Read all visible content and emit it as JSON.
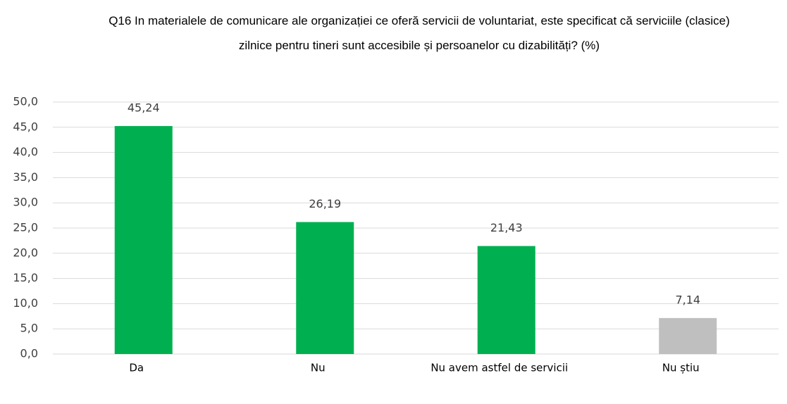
{
  "chart_data": {
    "type": "bar",
    "title": "Q16 In materialele de comunicare ale organizației ce oferă servicii de voluntariat, este specificat că serviciile (clasice) zilnice pentru tineri sunt accesibile și persoanelor cu dizabilități? (%)",
    "categories": [
      "Da",
      "Nu",
      "Nu avem astfel de servicii",
      "Nu știu"
    ],
    "values": [
      45.24,
      26.19,
      21.43,
      7.14
    ],
    "value_labels": [
      "45,24",
      "26,19",
      "21,43",
      "7,14"
    ],
    "colors": [
      "#00b050",
      "#00b050",
      "#00b050",
      "#bfbfbf"
    ],
    "ylim": [
      0,
      50
    ],
    "yticks": [
      {
        "value": 0,
        "label": "0,0"
      },
      {
        "value": 5,
        "label": "5,0"
      },
      {
        "value": 10,
        "label": "10,0"
      },
      {
        "value": 15,
        "label": "15,0"
      },
      {
        "value": 20,
        "label": "20,0"
      },
      {
        "value": 25,
        "label": "25,0"
      },
      {
        "value": 30,
        "label": "30,0"
      },
      {
        "value": 35,
        "label": "35,0"
      },
      {
        "value": 40,
        "label": "40,0"
      },
      {
        "value": 45,
        "label": "45,0"
      },
      {
        "value": 50,
        "label": "50,0"
      }
    ],
    "grid": true
  }
}
